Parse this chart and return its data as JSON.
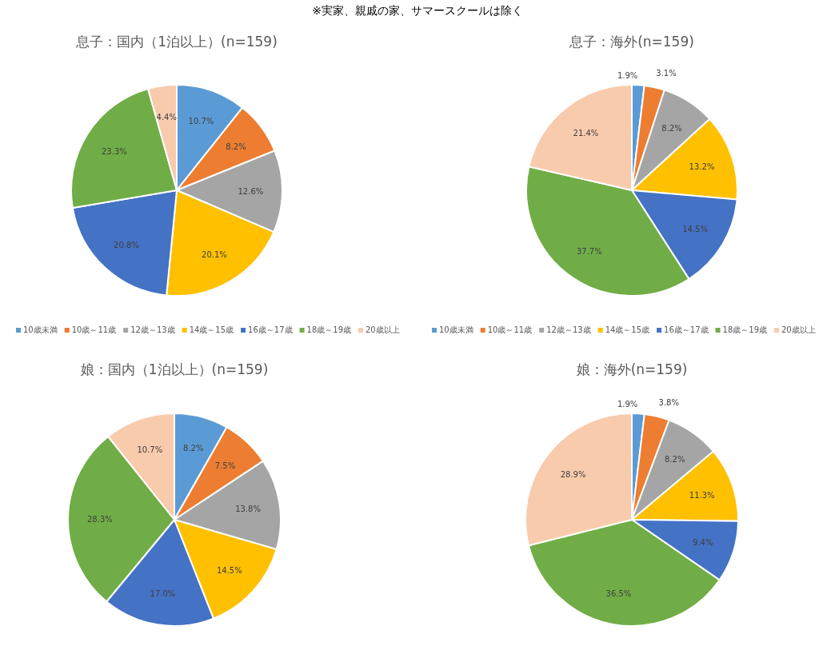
{
  "chart_data": [
    {
      "type": "pie",
      "title": "息子：国内（1泊以上）(n=159)",
      "annotations": [
        "※実家、親戚の家、サマースクールは除く"
      ],
      "legend": "bottom",
      "categories": [
        "10歳未満",
        "10歳～11歳",
        "12歳～13歳",
        "14歳～15歳",
        "16歳～17歳",
        "18歳～19歳",
        "20歳以上"
      ],
      "values": [
        10.7,
        8.2,
        12.6,
        20.1,
        20.8,
        23.3,
        4.4
      ],
      "value_labels": [
        "10.7%",
        "8.2%",
        "12.6%",
        "20.1%",
        "20.8%",
        "23.3%",
        "4.4%"
      ],
      "colors": [
        "#5b9bd5",
        "#ed7d31",
        "#a5a5a5",
        "#ffc000",
        "#4472c4",
        "#70ad47",
        "#f8cbad"
      ]
    },
    {
      "type": "pie",
      "title": "息子：海外(n=159)",
      "legend": "bottom",
      "categories": [
        "10歳未満",
        "10歳～11歳",
        "12歳～13歳",
        "14歳～15歳",
        "16歳～17歳",
        "18歳～19歳",
        "20歳以上"
      ],
      "values": [
        1.9,
        3.1,
        8.2,
        13.2,
        14.5,
        37.7,
        21.4
      ],
      "value_labels": [
        "1.9%",
        "3.1%",
        "8.2%",
        "13.2%",
        "14.5%",
        "37.7%",
        "21.4%"
      ],
      "colors": [
        "#5b9bd5",
        "#ed7d31",
        "#a5a5a5",
        "#ffc000",
        "#4472c4",
        "#70ad47",
        "#f8cbad"
      ]
    },
    {
      "type": "pie",
      "title": "娘：国内（1泊以上）(n=159)",
      "categories": [
        null,
        null,
        null,
        null,
        null,
        null,
        null
      ],
      "values": [
        8.2,
        7.5,
        13.8,
        14.5,
        17.0,
        28.3,
        10.7
      ],
      "value_labels": [
        "8.2%",
        "7.5%",
        "13.8%",
        "14.5%",
        "17.0%",
        "28.3%",
        "10.7%"
      ],
      "colors": [
        "#5b9bd5",
        "#ed7d31",
        "#a5a5a5",
        "#ffc000",
        "#4472c4",
        "#70ad47",
        "#f8cbad"
      ]
    },
    {
      "type": "pie",
      "title": "娘：海外(n=159)",
      "categories": [
        null,
        null,
        null,
        null,
        null,
        null,
        null
      ],
      "values": [
        1.9,
        3.8,
        8.2,
        11.3,
        9.4,
        36.5,
        28.9
      ],
      "value_labels": [
        "1.9%",
        "3.8%",
        "8.2%",
        "11.3%",
        "9.4%",
        "36.5%",
        "28.9%"
      ],
      "colors": [
        "#5b9bd5",
        "#ed7d31",
        "#a5a5a5",
        "#ffc000",
        "#4472c4",
        "#70ad47",
        "#f8cbad"
      ]
    }
  ]
}
